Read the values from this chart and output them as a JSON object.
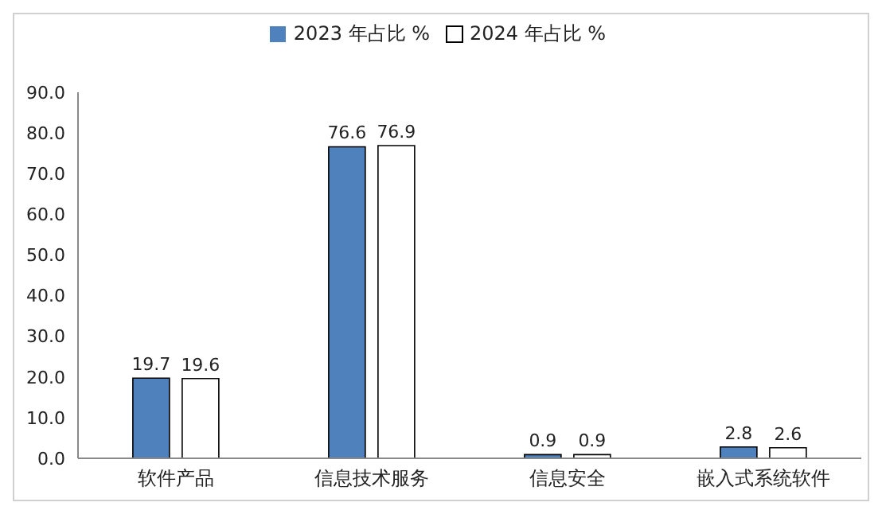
{
  "chart_data": {
    "type": "bar",
    "categories": [
      "软件产品",
      "信息技术服务",
      "信息安全",
      "嵌入式系统软件"
    ],
    "series": [
      {
        "name": "2023 年占比 %",
        "color": "#4f81bd",
        "values": [
          19.7,
          76.6,
          0.9,
          2.8
        ]
      },
      {
        "name": "2024 年占比 %",
        "color": "#ffffff",
        "values": [
          19.6,
          76.9,
          0.9,
          2.6
        ]
      }
    ],
    "ylim": [
      0,
      90
    ],
    "yticks": [
      {
        "value": 0,
        "label": "0.0"
      },
      {
        "value": 10,
        "label": "10.0"
      },
      {
        "value": 20,
        "label": "20.0"
      },
      {
        "value": 30,
        "label": "30.0"
      },
      {
        "value": 40,
        "label": "40.0"
      },
      {
        "value": 50,
        "label": "50.0"
      },
      {
        "value": 60,
        "label": "60.0"
      },
      {
        "value": 70,
        "label": "70.0"
      },
      {
        "value": 80,
        "label": "80.0"
      },
      {
        "value": 90,
        "label": "90.0"
      }
    ],
    "grid": false,
    "legend": "top",
    "data_labels": true
  }
}
